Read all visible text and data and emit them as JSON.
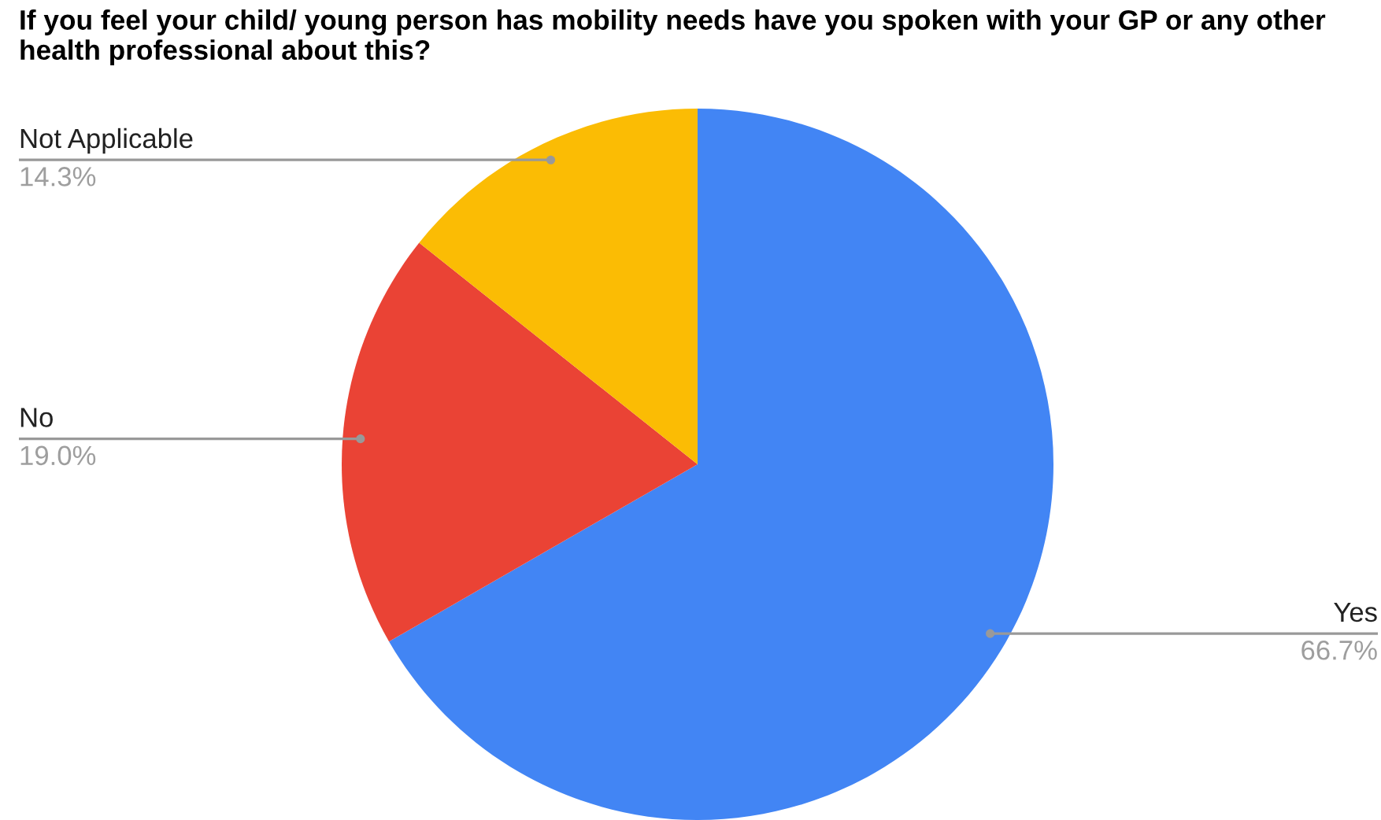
{
  "chart_data": {
    "type": "pie",
    "title": "If you feel your child/ young person has mobility needs have you spoken with your GP or any other health professional about this?",
    "categories": [
      "Yes",
      "No",
      "Not Applicable"
    ],
    "values": [
      66.7,
      19.0,
      14.3
    ],
    "value_labels": [
      "66.7%",
      "19.0%",
      "14.3%"
    ],
    "colors": [
      "#4285f4",
      "#ea4335",
      "#fbbc04"
    ]
  }
}
